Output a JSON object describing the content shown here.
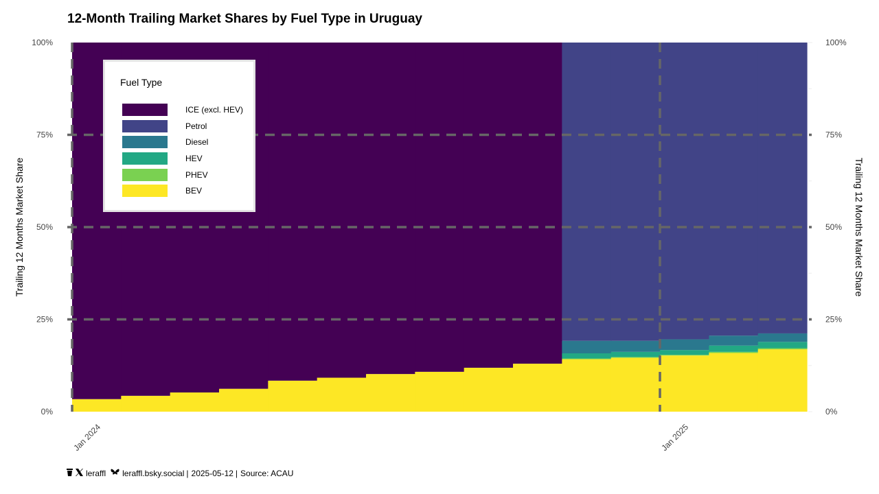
{
  "chart_data": {
    "type": "area",
    "title": "12-Month Trailing Market Shares by Fuel Type in Uruguay",
    "ylabel": "Trailing 12 Months Market Share",
    "ylabel_right": "Trailing 12 Months Market Share",
    "ylim": [
      0,
      100
    ],
    "yticks": [
      "0%",
      "25%",
      "50%",
      "75%",
      "100%"
    ],
    "xtick_labels": [
      "Jan 2024",
      "Jan 2025"
    ],
    "grid": true,
    "legend_position": "top-left",
    "legend_title": "Fuel Type",
    "x": [
      "2024-01",
      "2024-02",
      "2024-03",
      "2024-04",
      "2024-05",
      "2024-06",
      "2024-07",
      "2024-08",
      "2024-09",
      "2024-10",
      "2024-11",
      "2024-12",
      "2025-01",
      "2025-02",
      "2025-03"
    ],
    "series": [
      {
        "name": "BEV",
        "color": "#fde725",
        "values": [
          3.4,
          4.3,
          5.2,
          6.2,
          8.4,
          9.2,
          10.2,
          10.8,
          11.9,
          13.0,
          14.2,
          14.6,
          15.2,
          15.9,
          16.9
        ]
      },
      {
        "name": "PHEV",
        "color": "#7ad151",
        "values": [
          null,
          null,
          null,
          null,
          null,
          null,
          null,
          null,
          null,
          null,
          0.2,
          0.2,
          0.2,
          0.3,
          0.3
        ]
      },
      {
        "name": "HEV",
        "color": "#22a884",
        "values": [
          null,
          null,
          null,
          null,
          null,
          null,
          null,
          null,
          null,
          null,
          1.4,
          1.4,
          1.3,
          1.7,
          1.7
        ]
      },
      {
        "name": "Diesel",
        "color": "#2a788e",
        "values": [
          null,
          null,
          null,
          null,
          null,
          null,
          null,
          null,
          null,
          null,
          3.4,
          3.0,
          2.9,
          2.7,
          2.3
        ]
      },
      {
        "name": "Petrol",
        "color": "#414487",
        "values": [
          null,
          null,
          null,
          null,
          null,
          null,
          null,
          null,
          null,
          null,
          80.8,
          80.8,
          80.4,
          79.4,
          78.8
        ]
      },
      {
        "name": "ICE (excl. HEV)",
        "color": "#440154",
        "values": [
          96.6,
          95.7,
          94.8,
          93.8,
          91.6,
          90.8,
          89.8,
          89.2,
          88.1,
          87.0,
          null,
          null,
          null,
          null,
          null
        ]
      }
    ],
    "legend_order": [
      "ICE (excl. HEV)",
      "Petrol",
      "Diesel",
      "HEV",
      "PHEV",
      "BEV"
    ]
  },
  "footer": {
    "handle_x": "leraffl",
    "handle_bsky": "leraffl.bsky.social",
    "date": "2025-05-12",
    "source": "Source: ACAU"
  }
}
